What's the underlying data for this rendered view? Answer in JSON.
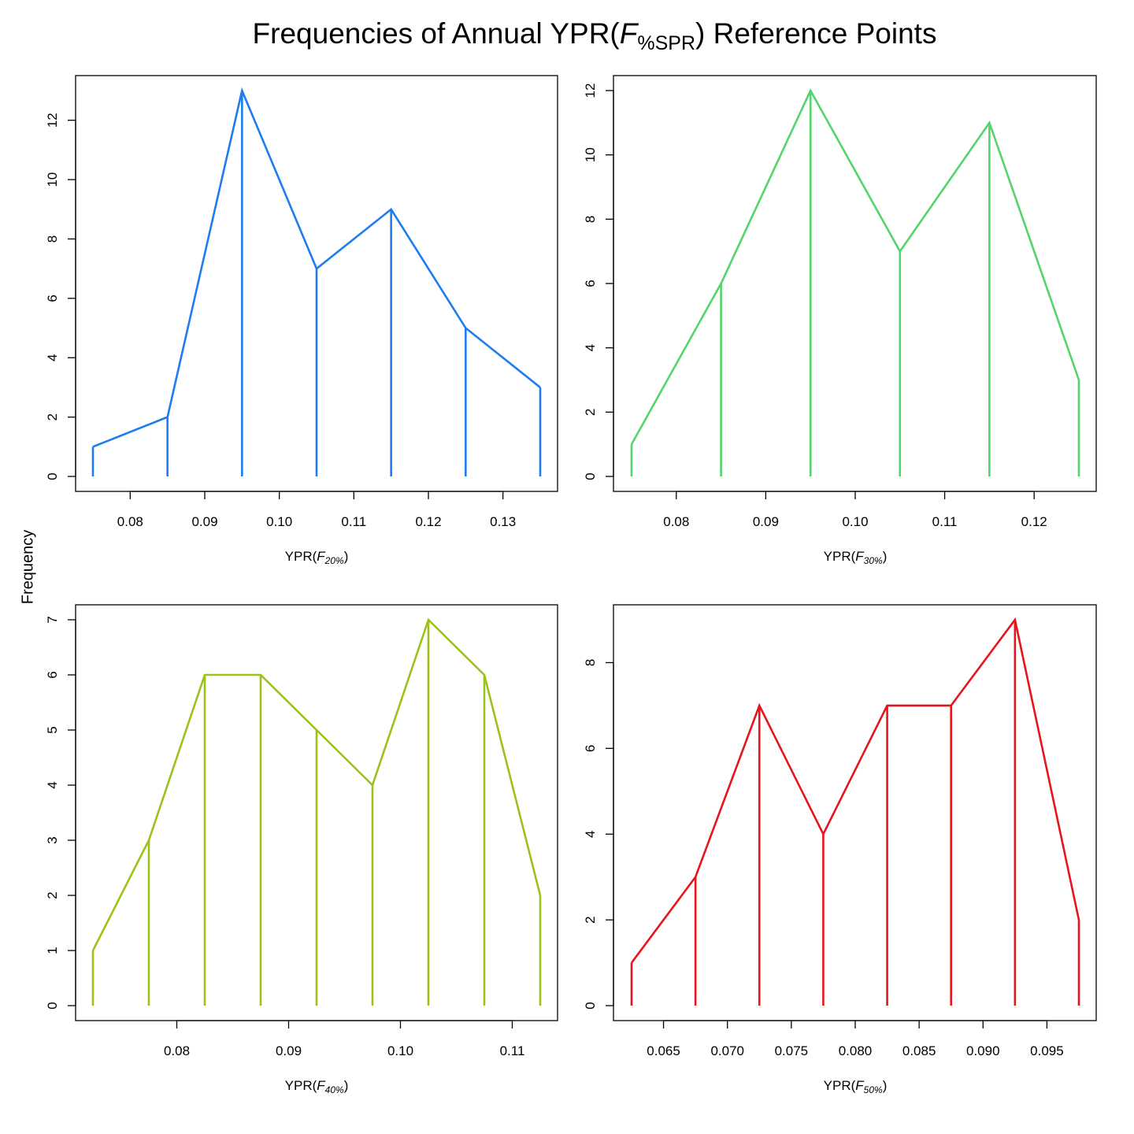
{
  "title": {
    "prefix": "Frequencies of Annual YPR(",
    "italic": "F",
    "sub": "%SPR",
    "suffix": ") Reference Points"
  },
  "ylabel": "Frequency",
  "chart_data": [
    {
      "type": "line",
      "xlabel": {
        "prefix": "YPR(",
        "italic": "F",
        "sub": "20%",
        "suffix": ")"
      },
      "color": "#1e7cf0",
      "x": [
        0.075,
        0.085,
        0.095,
        0.105,
        0.115,
        0.125,
        0.135
      ],
      "y": [
        1,
        2,
        13,
        7,
        9,
        5,
        3
      ],
      "xlim": [
        0.0725,
        0.1375
      ],
      "ylim": [
        0,
        13
      ],
      "xticks": [
        0.08,
        0.09,
        0.1,
        0.11,
        0.12,
        0.13
      ],
      "xtick_labels": [
        "0.08",
        "0.09",
        "0.10",
        "0.11",
        "0.12",
        "0.13"
      ],
      "yticks": [
        0,
        2,
        4,
        6,
        8,
        10,
        12
      ],
      "ytick_labels": [
        "0",
        "2",
        "4",
        "6",
        "8",
        "10",
        "12"
      ]
    },
    {
      "type": "line",
      "xlabel": {
        "prefix": "YPR(",
        "italic": "F",
        "sub": "30%",
        "suffix": ")"
      },
      "color": "#54d46a",
      "x": [
        0.075,
        0.085,
        0.095,
        0.105,
        0.115,
        0.125
      ],
      "y": [
        1,
        6,
        12,
        7,
        11,
        3
      ],
      "xlim": [
        0.0725,
        0.1275
      ],
      "ylim": [
        0,
        12
      ],
      "xticks": [
        0.08,
        0.09,
        0.1,
        0.11,
        0.12
      ],
      "xtick_labels": [
        "0.08",
        "0.09",
        "0.10",
        "0.11",
        "0.12"
      ],
      "yticks": [
        0,
        2,
        4,
        6,
        8,
        10,
        12
      ],
      "ytick_labels": [
        "0",
        "2",
        "4",
        "6",
        "8",
        "10",
        "12"
      ]
    },
    {
      "type": "line",
      "xlabel": {
        "prefix": "YPR(",
        "italic": "F",
        "sub": "40%",
        "suffix": ")"
      },
      "color": "#9bc21b",
      "x": [
        0.0725,
        0.0775,
        0.0825,
        0.0875,
        0.0925,
        0.0975,
        0.1025,
        0.1075,
        0.1125
      ],
      "y": [
        1,
        3,
        6,
        6,
        5,
        4,
        7,
        6,
        2
      ],
      "xlim": [
        0.071,
        0.114
      ],
      "ylim": [
        0,
        7
      ],
      "xticks": [
        0.08,
        0.09,
        0.1,
        0.11
      ],
      "xtick_labels": [
        "0.08",
        "0.09",
        "0.10",
        "0.11"
      ],
      "yticks": [
        0,
        1,
        2,
        3,
        4,
        5,
        6,
        7
      ],
      "ytick_labels": [
        "0",
        "1",
        "2",
        "3",
        "4",
        "5",
        "6",
        "7"
      ]
    },
    {
      "type": "line",
      "xlabel": {
        "prefix": "YPR(",
        "italic": "F",
        "sub": "50%",
        "suffix": ")"
      },
      "color": "#e8141c",
      "x": [
        0.0625,
        0.0675,
        0.0725,
        0.0775,
        0.0825,
        0.0875,
        0.0925,
        0.0975
      ],
      "y": [
        1,
        3,
        7,
        4,
        7,
        7,
        9,
        2
      ],
      "xlim": [
        0.061,
        0.099
      ],
      "ylim": [
        0,
        9
      ],
      "xticks": [
        0.065,
        0.07,
        0.075,
        0.08,
        0.085,
        0.09,
        0.095
      ],
      "xtick_labels": [
        "0.065",
        "0.070",
        "0.075",
        "0.080",
        "0.085",
        "0.090",
        "0.095"
      ],
      "yticks": [
        0,
        2,
        4,
        6,
        8
      ],
      "ytick_labels": [
        "0",
        "2",
        "4",
        "6",
        "8"
      ]
    }
  ]
}
